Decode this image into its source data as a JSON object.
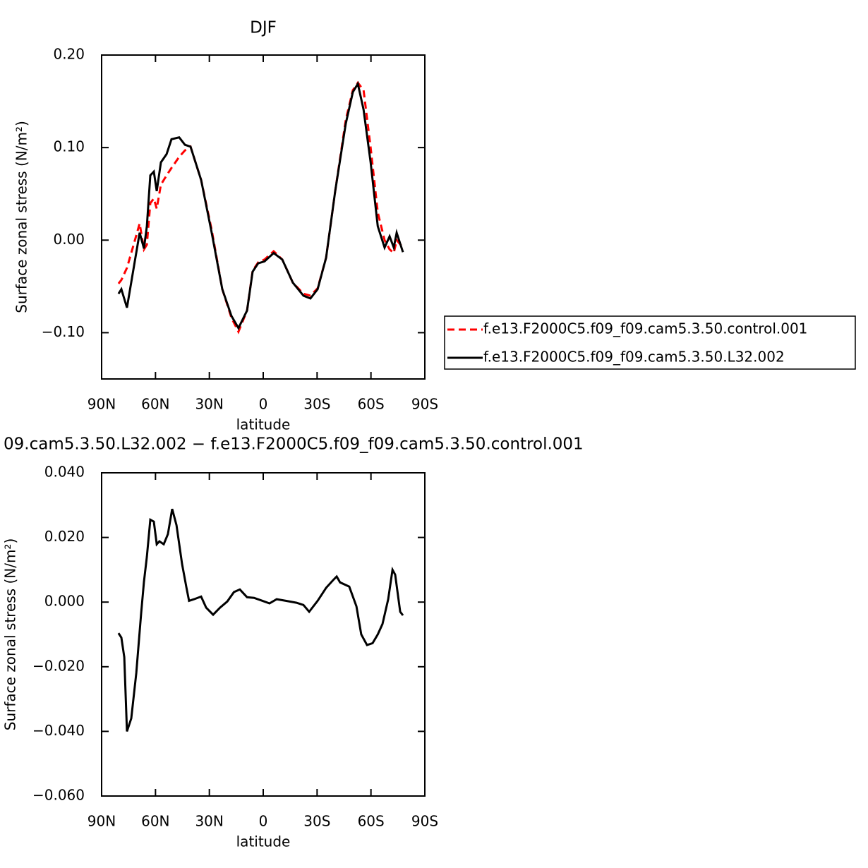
{
  "chart_data": [
    {
      "type": "line",
      "title": "DJF",
      "x_label": "latitude",
      "y_label": "Surface zonal stress (N/m²)",
      "x": [
        80.6,
        79.0,
        75.9,
        71.9,
        68.8,
        66.4,
        64.8,
        62.9,
        60.9,
        59.3,
        57.0,
        53.8,
        51.1,
        46.8,
        43.6,
        40.5,
        34.6,
        28.7,
        22.8,
        17.7,
        13.8,
        9.0,
        5.9,
        2.8,
        -0.7,
        -5.8,
        -10.6,
        -16.5,
        -22.4,
        -26.3,
        -30.3,
        -35.0,
        -40.1,
        -46.0,
        -49.9,
        -52.7,
        -55.9,
        -59.8,
        -63.8,
        -67.6,
        -70.4,
        -72.7,
        -74.3,
        -77.8
      ],
      "series": [
        {
          "name": "f.e13.F2000C5.f09_f09.cam5.3.50.control.001",
          "color": "#ff0000",
          "line_style": "dashed",
          "values": [
            -0.047,
            -0.043,
            -0.03,
            -0.003,
            0.018,
            -0.01,
            -0.005,
            0.04,
            0.045,
            0.034,
            0.06,
            0.07,
            0.078,
            0.09,
            0.097,
            0.101,
            0.065,
            0.011,
            -0.053,
            -0.084,
            -0.099,
            -0.076,
            -0.033,
            -0.024,
            -0.021,
            -0.012,
            -0.021,
            -0.046,
            -0.058,
            -0.06,
            -0.052,
            -0.019,
            0.053,
            0.13,
            0.162,
            0.17,
            0.162,
            0.1,
            0.03,
            0.0,
            -0.01,
            -0.014,
            0.0,
            -0.008
          ]
        },
        {
          "name": "f.e13.F2000C5.f09_f09.cam5.3.50.L32.002",
          "color": "#000000",
          "line_style": "solid",
          "values": [
            -0.058,
            -0.053,
            -0.073,
            -0.027,
            0.008,
            -0.009,
            0.015,
            0.07,
            0.074,
            0.053,
            0.084,
            0.093,
            0.109,
            0.111,
            0.103,
            0.101,
            0.065,
            0.008,
            -0.053,
            -0.082,
            -0.095,
            -0.076,
            -0.034,
            -0.025,
            -0.023,
            -0.014,
            -0.021,
            -0.046,
            -0.06,
            -0.063,
            -0.053,
            -0.019,
            0.053,
            0.126,
            0.16,
            0.169,
            0.141,
            0.084,
            0.015,
            -0.008,
            0.004,
            -0.008,
            0.008,
            -0.013
          ]
        }
      ],
      "xlim": [
        90,
        -90
      ],
      "xticks": [
        {
          "value": 90,
          "label": "90N"
        },
        {
          "value": 60,
          "label": "60N"
        },
        {
          "value": 30,
          "label": "30N"
        },
        0,
        {
          "value": -30,
          "label": "30S"
        },
        {
          "value": -60,
          "label": "60S"
        },
        {
          "value": -90,
          "label": "90S"
        }
      ],
      "ylim": [
        -0.15,
        0.2
      ],
      "yticks": [
        {
          "value": -0.1,
          "label": "−0.10"
        },
        {
          "value": 0,
          "label": "0.00"
        },
        {
          "value": 0.1,
          "label": "0.10"
        },
        {
          "value": 0.2,
          "label": "0.20"
        }
      ],
      "legend": "right"
    },
    {
      "type": "line",
      "title": "09.cam5.3.50.L32.002 − f.e13.F2000C5.f09_f09.cam5.3.50.control.001",
      "x_label": "latitude",
      "y_label": "Surface zonal stress (N/m²)",
      "x": [
        80.6,
        79.0,
        77.4,
        75.9,
        73.5,
        70.7,
        68.0,
        66.4,
        64.8,
        62.9,
        60.9,
        59.3,
        57.8,
        55.4,
        53.1,
        50.7,
        48.3,
        45.2,
        42.8,
        41.3,
        38.5,
        34.6,
        31.8,
        27.9,
        24.0,
        20.0,
        16.3,
        13.0,
        9.0,
        5.1,
        0.4,
        -3.5,
        -7.5,
        -12.6,
        -18.5,
        -22.4,
        -25.6,
        -30.3,
        -35.0,
        -38.9,
        -40.9,
        -42.8,
        -47.9,
        -51.9,
        -54.6,
        -57.8,
        -60.9,
        -63.8,
        -66.4,
        -69.6,
        -72.0,
        -73.5,
        -76.3,
        -77.8
      ],
      "series": [
        {
          "color": "#000000",
          "line_style": "solid",
          "values": [
            -0.0096,
            -0.011,
            -0.017,
            -0.04,
            -0.036,
            -0.022,
            -0.0035,
            0.0063,
            0.014,
            0.0255,
            0.0249,
            0.0179,
            0.0188,
            0.0179,
            0.021,
            0.0288,
            0.0238,
            0.0118,
            0.0046,
            0.0004,
            0.0009,
            0.0017,
            -0.0017,
            -0.0039,
            -0.0017,
            0.0002,
            0.0031,
            0.0039,
            0.0015,
            0.0013,
            0.0004,
            -0.0004,
            0.0009,
            0.0004,
            -0.0002,
            -0.0009,
            -0.003,
            0.0004,
            0.0044,
            0.0068,
            0.0079,
            0.0061,
            0.0048,
            -0.0013,
            -0.01,
            -0.0133,
            -0.0127,
            -0.01,
            -0.0068,
            0.0009,
            0.01,
            0.0085,
            -0.003,
            -0.0041
          ]
        }
      ],
      "xlim": [
        90,
        -90
      ],
      "xticks": [
        {
          "value": 90,
          "label": "90N"
        },
        {
          "value": 60,
          "label": "60N"
        },
        {
          "value": 30,
          "label": "30N"
        },
        0,
        {
          "value": -30,
          "label": "30S"
        },
        {
          "value": -60,
          "label": "60S"
        },
        {
          "value": -90,
          "label": "90S"
        }
      ],
      "ylim": [
        -0.06,
        0.04
      ],
      "yticks": [
        {
          "value": -0.06,
          "label": "−0.060"
        },
        {
          "value": -0.04,
          "label": "−0.040"
        },
        {
          "value": -0.02,
          "label": "−0.020"
        },
        {
          "value": 0,
          "label": "0.000"
        },
        {
          "value": 0.02,
          "label": "0.020"
        },
        {
          "value": 0.04,
          "label": "0.040"
        }
      ]
    }
  ]
}
